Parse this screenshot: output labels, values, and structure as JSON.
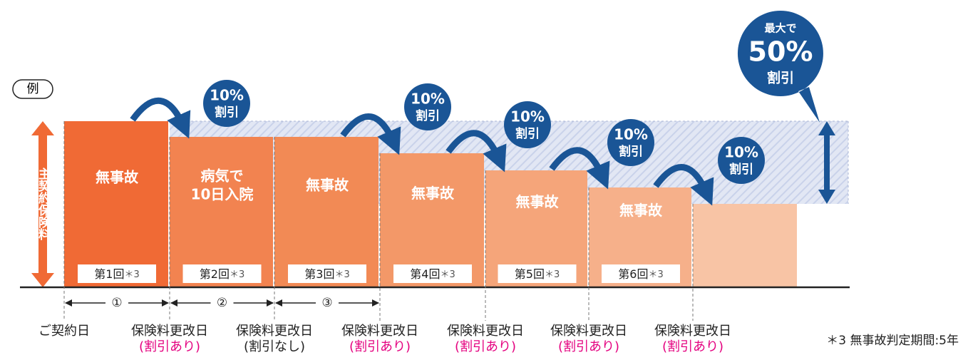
{
  "example_label": "例",
  "axis_label": "主契約保険料",
  "bars": [
    {
      "text": [
        "無事故"
      ],
      "round": "第1回",
      "note": "＊3"
    },
    {
      "text": [
        "病気で",
        "10日入院"
      ],
      "round": "第2回",
      "note": "＊3"
    },
    {
      "text": [
        "無事故"
      ],
      "round": "第3回",
      "note": "＊3"
    },
    {
      "text": [
        "無事故"
      ],
      "round": "第4回",
      "note": "＊3"
    },
    {
      "text": [
        "無事故"
      ],
      "round": "第5回",
      "note": "＊3"
    },
    {
      "text": [
        "無事故"
      ],
      "round": "第6回",
      "note": "＊3"
    }
  ],
  "discounts": [
    {
      "percent": "10%",
      "text": "割引"
    },
    {
      "percent": "10%",
      "text": "割引"
    },
    {
      "percent": "10%",
      "text": "割引"
    },
    {
      "percent": "10%",
      "text": "割引"
    },
    {
      "percent": "10%",
      "text": "割引"
    }
  ],
  "max_bubble": {
    "top": "最大で",
    "percent": "50%",
    "bottom": "割引"
  },
  "periods": [
    "①",
    "②",
    "③"
  ],
  "dates": [
    {
      "label": "ご契約日"
    },
    {
      "label": "保険料更改日",
      "note": "(割引あり)"
    },
    {
      "label": "保険料更改日",
      "note": "(割引なし)"
    },
    {
      "label": "保険料更改日",
      "note": "(割引あり)"
    },
    {
      "label": "保険料更改日",
      "note": "(割引あり)"
    },
    {
      "label": "保険料更改日",
      "note": "(割引あり)"
    },
    {
      "label": "保険料更改日",
      "note": "(割引あり)"
    }
  ],
  "footnote": "＊3 無事故判定期間:5年"
}
